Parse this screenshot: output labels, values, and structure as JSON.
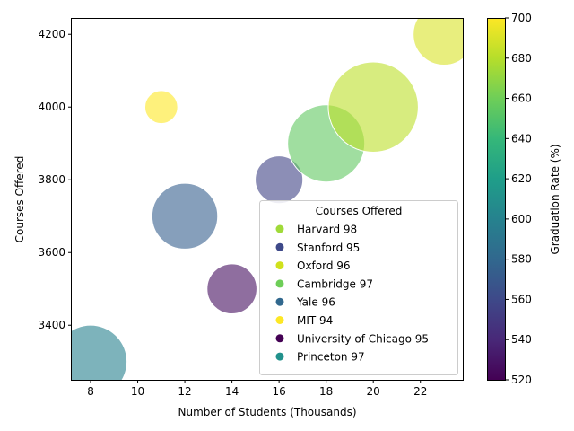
{
  "chart_data": {
    "type": "scatter",
    "xlabel": "Number of Students (Thousands)",
    "ylabel": "Courses Offered",
    "xlim": [
      7.2,
      23.8
    ],
    "ylim": [
      3250,
      4245
    ],
    "xticks": [
      8,
      10,
      12,
      14,
      16,
      18,
      20,
      22
    ],
    "yticks": [
      3400,
      3600,
      3800,
      4000,
      4200
    ],
    "colorbar": {
      "label": "Graduation Rate (%)",
      "min": 520,
      "max": 700,
      "ticks": [
        520,
        540,
        560,
        580,
        600,
        620,
        640,
        660,
        680,
        700
      ],
      "colormap": "viridis"
    },
    "grid": false,
    "legend": {
      "title": "Courses Offered",
      "placement": "lower-right",
      "entries": [
        {
          "label": "Harvard 98",
          "color": "#a0da39"
        },
        {
          "label": "Stanford 95",
          "color": "#3e4989"
        },
        {
          "label": "Oxford 96",
          "color": "#d0e11c"
        },
        {
          "label": "Cambridge 97",
          "color": "#6ece58"
        },
        {
          "label": "Yale 96",
          "color": "#31688e"
        },
        {
          "label": "MIT 94",
          "color": "#fde725"
        },
        {
          "label": "University of Chicago 95",
          "color": "#440154"
        },
        {
          "label": "Princeton 97",
          "color": "#21918c"
        }
      ]
    },
    "points": [
      {
        "x": 8,
        "y": 3300,
        "color_value": 598,
        "size": 98
      },
      {
        "x": 11,
        "y": 4000,
        "color_value": 700,
        "size": 20
      },
      {
        "x": 12,
        "y": 3700,
        "color_value": 574,
        "size": 80
      },
      {
        "x": 14,
        "y": 3500,
        "color_value": 526,
        "size": 46
      },
      {
        "x": 16,
        "y": 3800,
        "color_value": 556,
        "size": 42
      },
      {
        "x": 18,
        "y": 3900,
        "color_value": 655,
        "size": 110
      },
      {
        "x": 20,
        "y": 4000,
        "color_value": 682,
        "size": 150
      },
      {
        "x": 23,
        "y": 4200,
        "color_value": 690,
        "size": 70
      }
    ]
  }
}
